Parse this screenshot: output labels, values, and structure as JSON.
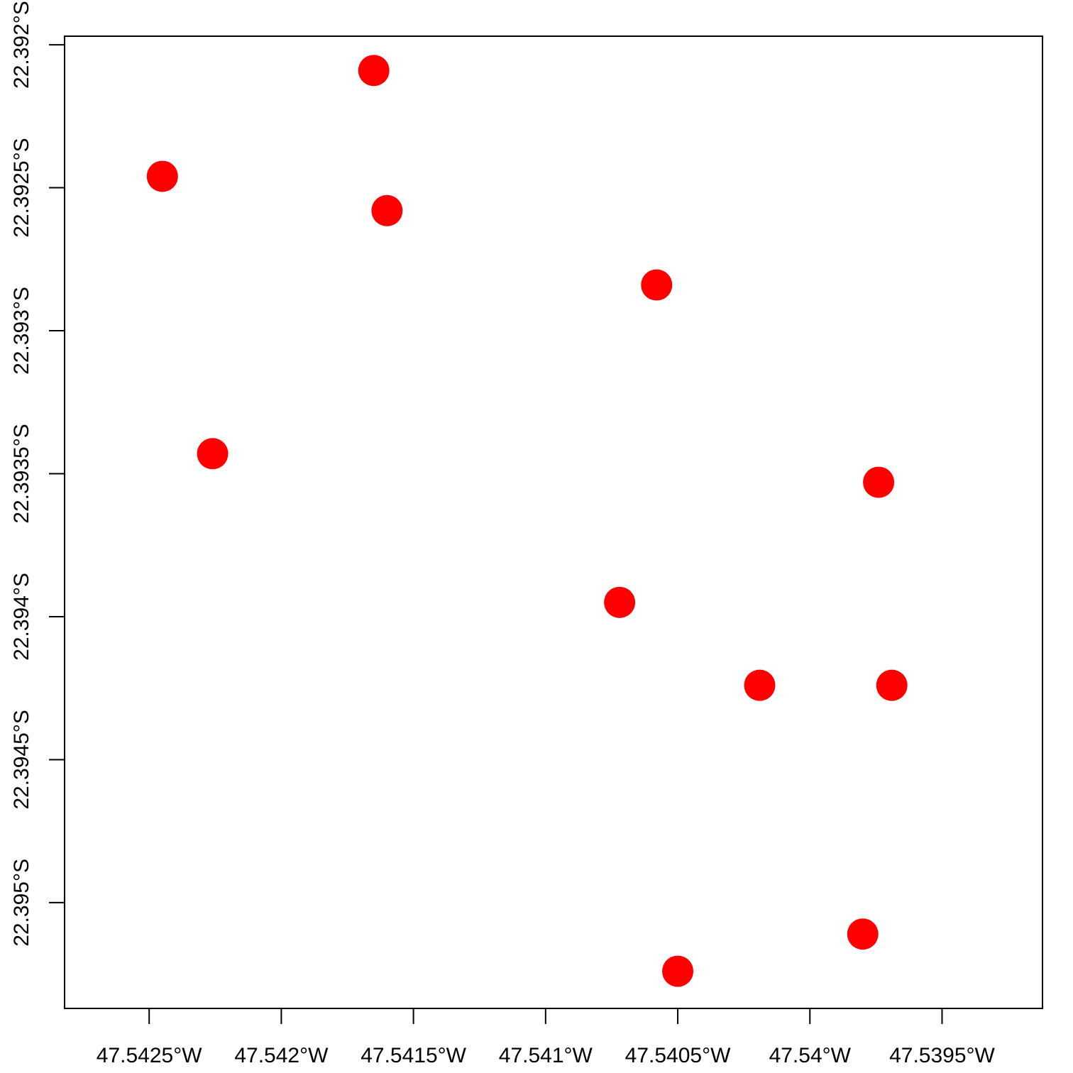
{
  "chart_data": {
    "type": "scatter",
    "title": "",
    "xlabel": "",
    "ylabel": "",
    "xlim": [
      -47.54282,
      -47.53912
    ],
    "ylim": [
      -22.39537,
      -22.39197
    ],
    "x_ticks": [
      {
        "value": -47.5425,
        "label": "47.5425°W"
      },
      {
        "value": -47.542,
        "label": "47.542°W"
      },
      {
        "value": -47.5415,
        "label": "47.5415°W"
      },
      {
        "value": -47.541,
        "label": "47.541°W"
      },
      {
        "value": -47.5405,
        "label": "47.5405°W"
      },
      {
        "value": -47.54,
        "label": "47.54°W"
      },
      {
        "value": -47.5395,
        "label": "47.5395°W"
      }
    ],
    "y_ticks": [
      {
        "value": -22.392,
        "label": "22.392°S"
      },
      {
        "value": -22.3925,
        "label": "22.3925°S"
      },
      {
        "value": -22.393,
        "label": "22.393°S"
      },
      {
        "value": -22.3935,
        "label": "22.3935°S"
      },
      {
        "value": -22.394,
        "label": "22.394°S"
      },
      {
        "value": -22.3945,
        "label": "22.3945°S"
      },
      {
        "value": -22.395,
        "label": "22.395°S"
      }
    ],
    "points": [
      {
        "x": -47.54165,
        "y": -22.39209
      },
      {
        "x": -47.54245,
        "y": -22.39246
      },
      {
        "x": -47.5416,
        "y": -22.39258
      },
      {
        "x": -47.54058,
        "y": -22.39284
      },
      {
        "x": -47.54226,
        "y": -22.39343
      },
      {
        "x": -47.53974,
        "y": -22.39353
      },
      {
        "x": -47.54072,
        "y": -22.39395
      },
      {
        "x": -47.54019,
        "y": -22.39424
      },
      {
        "x": -47.53969,
        "y": -22.39424
      },
      {
        "x": -47.5398,
        "y": -22.39511
      },
      {
        "x": -47.5405,
        "y": -22.39524
      }
    ],
    "point_color": "#ff0000",
    "grid": false,
    "legend": "none"
  }
}
